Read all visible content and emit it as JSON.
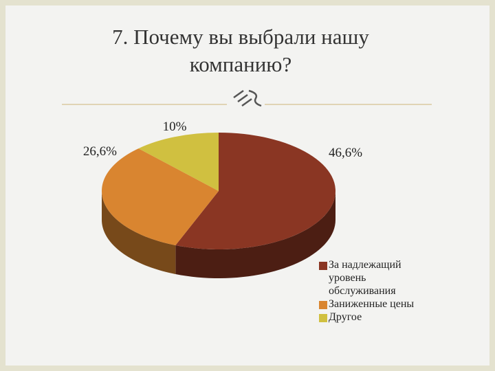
{
  "chart_data": {
    "type": "pie",
    "title": "7. Почему вы выбрали нашу компанию?",
    "categories": [
      "За надлежащий уровень обслуживания",
      "Заниженные цены",
      "Другое"
    ],
    "values": [
      46.6,
      26.6,
      10
    ],
    "value_labels": [
      "46,6%",
      "26,6%",
      "10%"
    ],
    "colors": [
      "#8a3623",
      "#d98530",
      "#d0c040"
    ]
  }
}
